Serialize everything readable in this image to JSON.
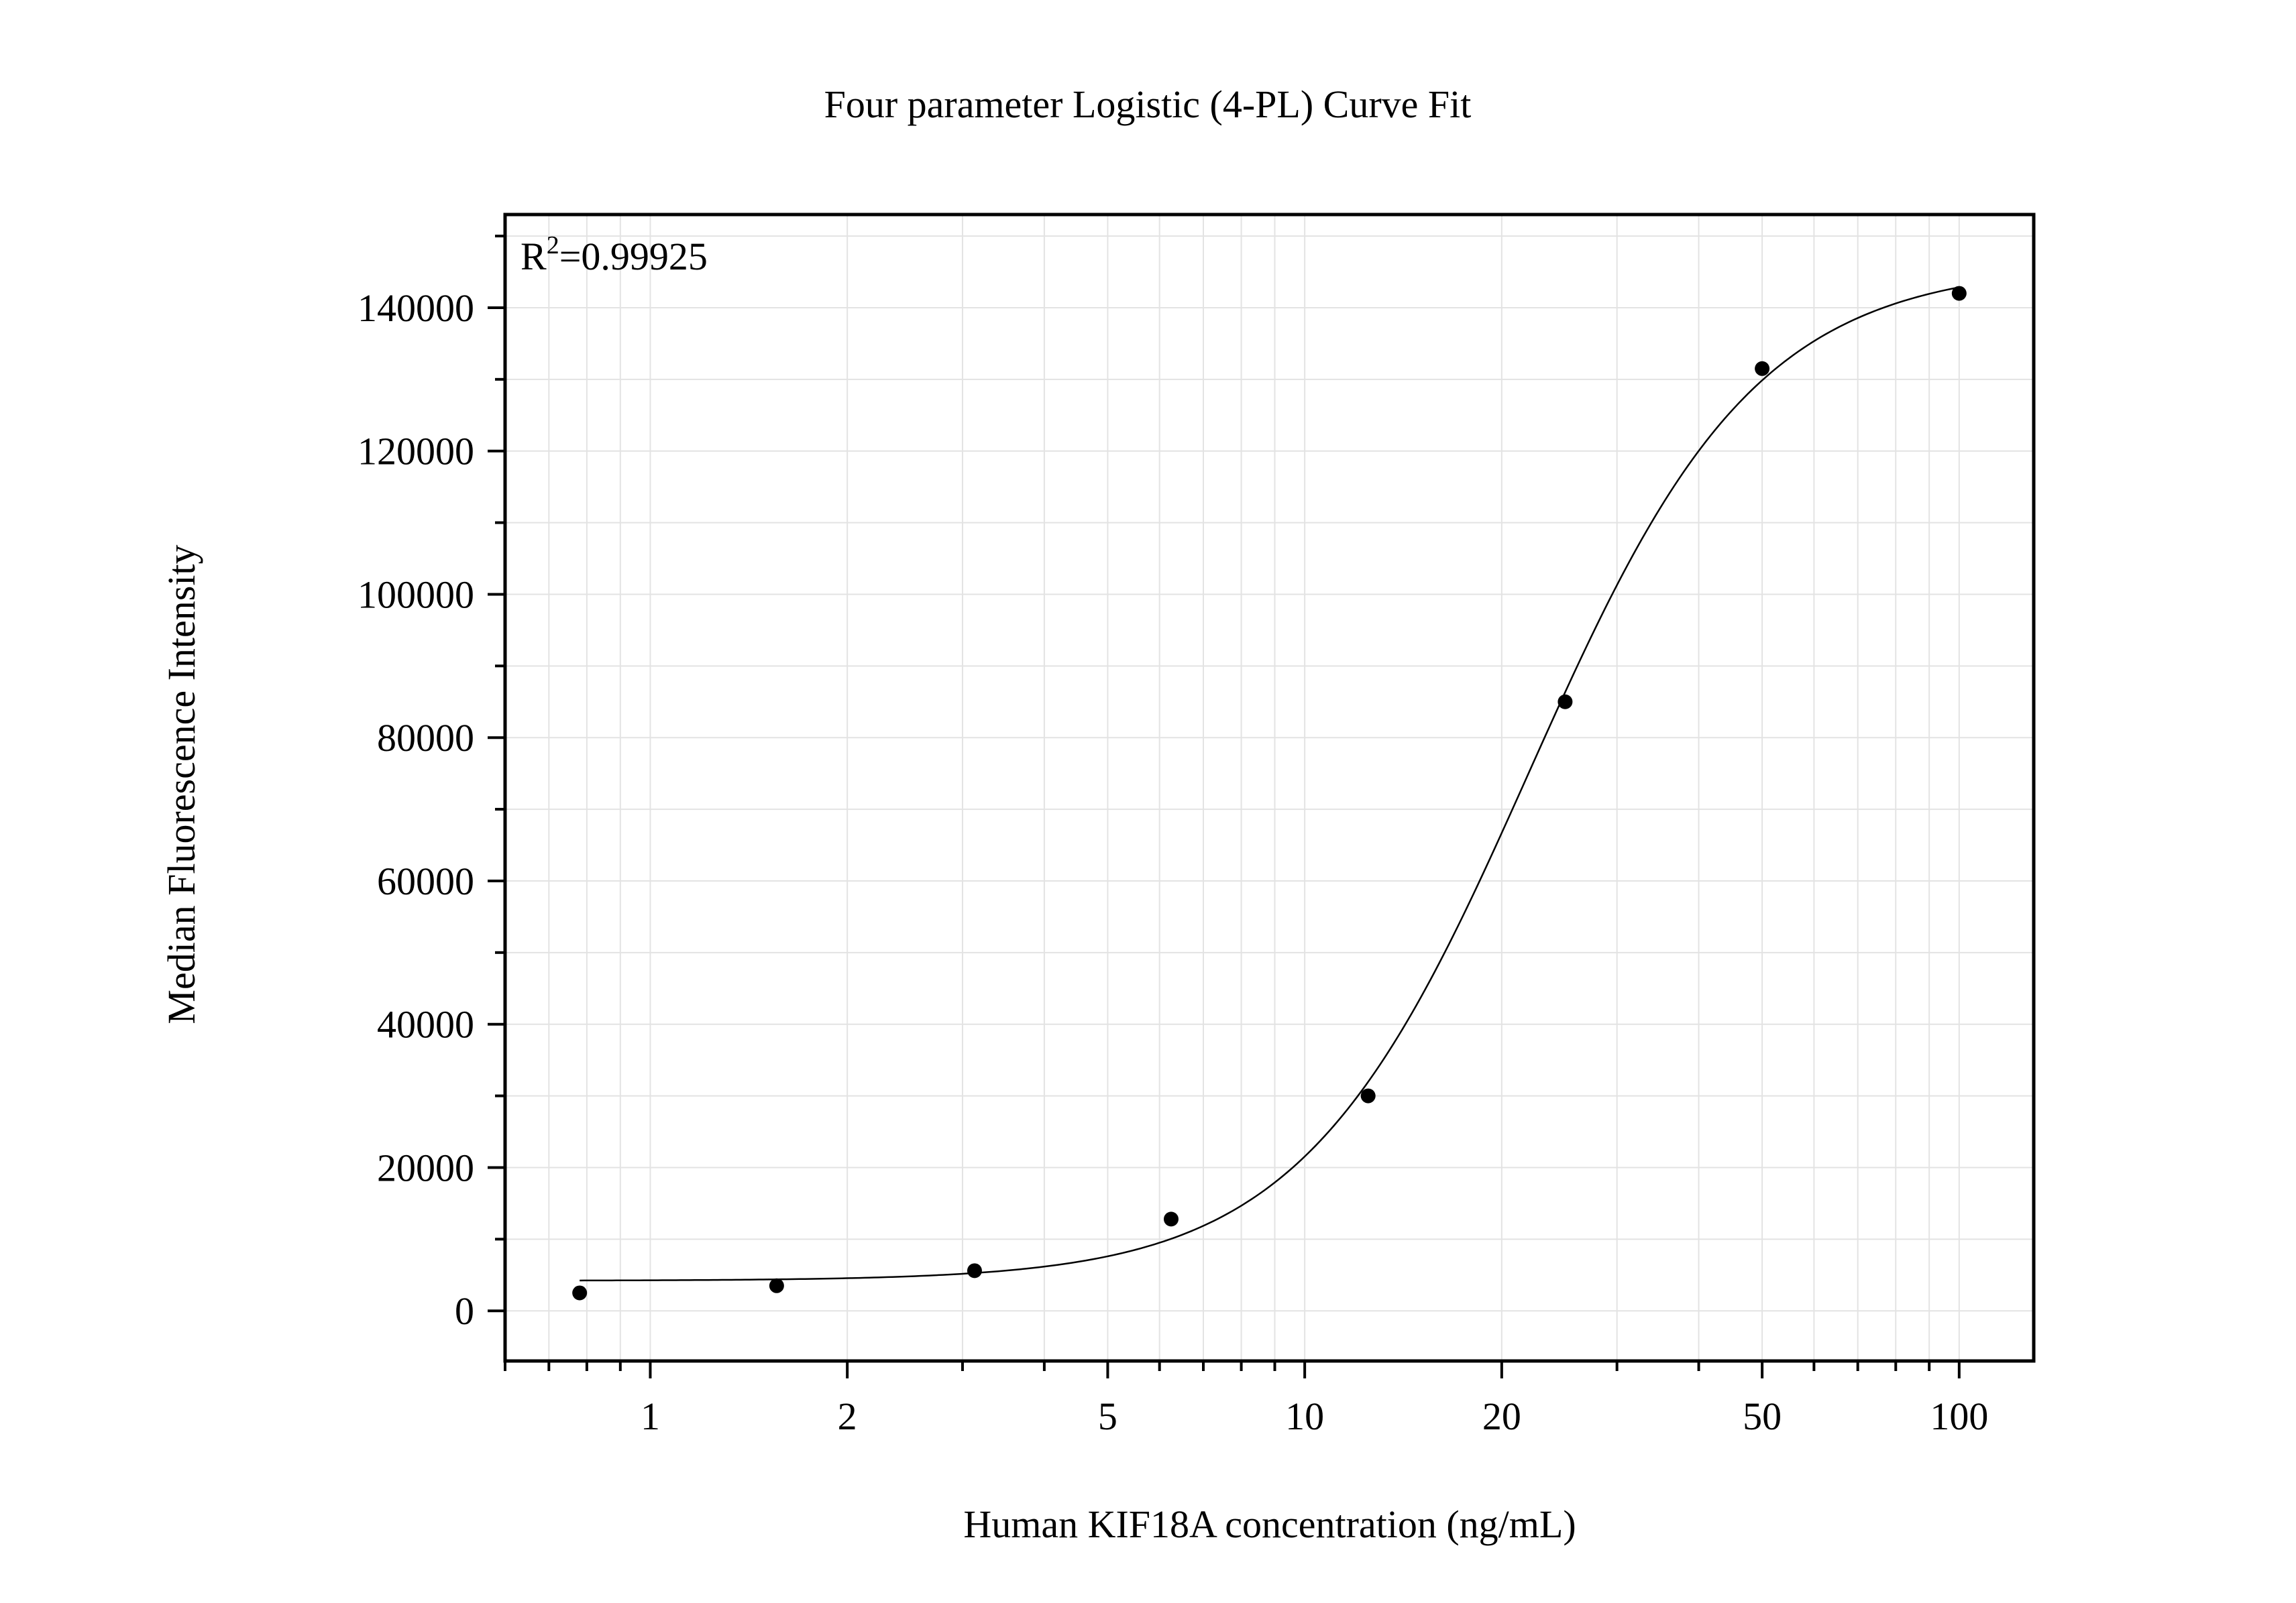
{
  "chart_data": {
    "type": "scatter",
    "title": "Four parameter Logistic (4-PL) Curve Fit",
    "xlabel": "Human KIF18A concentration (ng/mL)",
    "ylabel": "Median Fluorescence Intensity",
    "annotation": {
      "base": "R",
      "sup": "2",
      "text": "=0.99925"
    },
    "x_scale": "log",
    "xlim": [
      0.6,
      130
    ],
    "ylim": [
      -7000,
      153000
    ],
    "x_major_ticks": [
      1,
      2,
      5,
      10,
      20,
      50,
      100
    ],
    "x_tick_labels": [
      "1",
      "2",
      "5",
      "10",
      "20",
      "50",
      "100"
    ],
    "x_minor_ticks": [
      0.6,
      0.7,
      0.8,
      0.9,
      3,
      4,
      6,
      7,
      8,
      9,
      30,
      40,
      60,
      70,
      80,
      90
    ],
    "y_major_ticks": [
      0,
      20000,
      40000,
      60000,
      80000,
      100000,
      120000,
      140000
    ],
    "y_tick_labels": [
      "0",
      "20000",
      "40000",
      "60000",
      "80000",
      "100000",
      "120000",
      "140000"
    ],
    "y_minor_ticks": [
      10000,
      30000,
      50000,
      70000,
      90000,
      110000,
      130000,
      150000
    ],
    "grid": true,
    "series": [
      {
        "points": [
          {
            "x": 0.78,
            "y": 2500
          },
          {
            "x": 1.56,
            "y": 3500
          },
          {
            "x": 3.13,
            "y": 5600
          },
          {
            "x": 6.25,
            "y": 12800
          },
          {
            "x": 12.5,
            "y": 30000
          },
          {
            "x": 25,
            "y": 85000
          },
          {
            "x": 50,
            "y": 131500
          },
          {
            "x": 100,
            "y": 142000
          }
        ],
        "marker": "circle",
        "color": "#000000"
      }
    ],
    "fit_curve": {
      "model": "4PL",
      "bottom": 4200,
      "top": 146000,
      "ec50": 22,
      "hill": 2.5,
      "x_range": [
        0.78,
        100
      ],
      "color": "#000000"
    }
  }
}
